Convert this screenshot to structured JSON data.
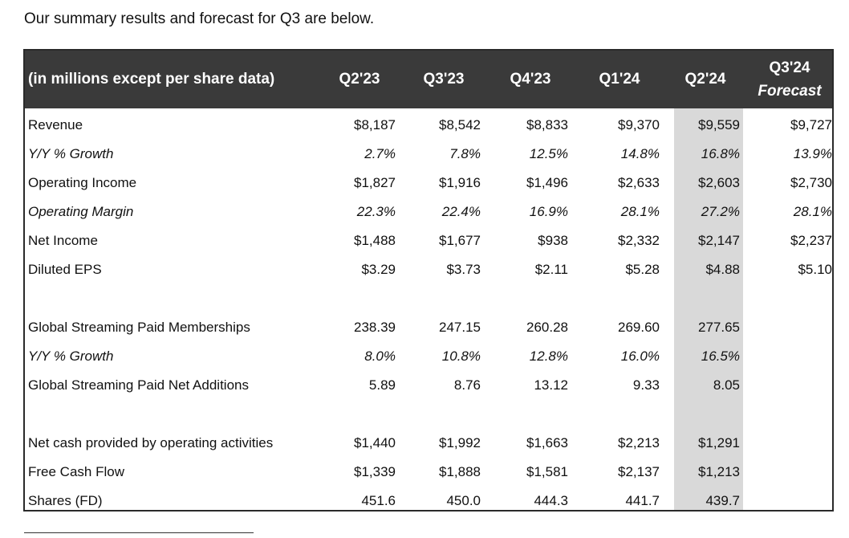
{
  "intro": "Our summary results and forecast for Q3 are below.",
  "table": {
    "header_label": "(in millions except per share data)",
    "columns": [
      "Q2'23",
      "Q3'23",
      "Q4'23",
      "Q1'24",
      "Q2'24"
    ],
    "forecast_column": {
      "line1": "Q3'24",
      "line2": "Forecast"
    },
    "shaded_column": "Q2'24",
    "rows": [
      {
        "label": "Revenue",
        "values": [
          "$8,187",
          "$8,542",
          "$8,833",
          "$9,370",
          "$9,559",
          "$9,727"
        ]
      },
      {
        "label": "Y/Y % Growth",
        "values": [
          "2.7%",
          "7.8%",
          "12.5%",
          "14.8%",
          "16.8%",
          "13.9%"
        ]
      },
      {
        "label": "Operating Income",
        "values": [
          "$1,827",
          "$1,916",
          "$1,496",
          "$2,633",
          "$2,603",
          "$2,730"
        ]
      },
      {
        "label": "Operating Margin",
        "values": [
          "22.3%",
          "22.4%",
          "16.9%",
          "28.1%",
          "27.2%",
          "28.1%"
        ]
      },
      {
        "label": "Net Income",
        "values": [
          "$1,488",
          "$1,677",
          "$938",
          "$2,332",
          "$2,147",
          "$2,237"
        ]
      },
      {
        "label": "Diluted EPS",
        "values": [
          "$3.29",
          "$3.73",
          "$2.11",
          "$5.28",
          "$4.88",
          "$5.10"
        ]
      },
      {
        "label": "Global Streaming Paid Memberships",
        "values": [
          "238.39",
          "247.15",
          "260.28",
          "269.60",
          "277.65",
          ""
        ]
      },
      {
        "label": "Y/Y % Growth",
        "values": [
          "8.0%",
          "10.8%",
          "12.8%",
          "16.0%",
          "16.5%",
          ""
        ]
      },
      {
        "label": "Global Streaming Paid Net Additions",
        "values": [
          "5.89",
          "8.76",
          "13.12",
          "9.33",
          "8.05",
          ""
        ]
      },
      {
        "label": "Net cash provided by operating activities",
        "values": [
          "$1,440",
          "$1,992",
          "$1,663",
          "$2,213",
          "$1,291",
          ""
        ]
      },
      {
        "label": "Free Cash Flow",
        "values": [
          "$1,339",
          "$1,888",
          "$1,581",
          "$2,137",
          "$1,213",
          ""
        ]
      },
      {
        "label": "Shares (FD)",
        "values": [
          "451.6",
          "450.0",
          "444.3",
          "441.7",
          "439.7",
          ""
        ]
      }
    ]
  }
}
